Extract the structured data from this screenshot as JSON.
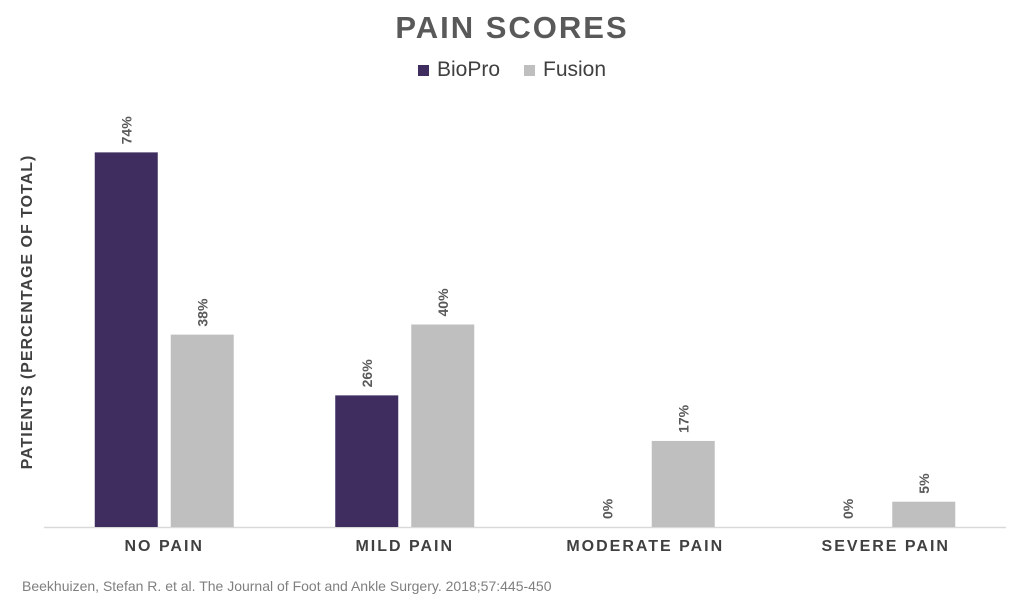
{
  "chart_data": {
    "type": "bar",
    "title": "PAIN SCORES",
    "ylabel": "PATIENTS (PERCENTAGE OF TOTAL)",
    "xlabel": "",
    "categories": [
      "NO PAIN",
      "MILD PAIN",
      "MODERATE PAIN",
      "SEVERE PAIN"
    ],
    "series": [
      {
        "name": "BioPro",
        "color": "#3f2d5f",
        "values": [
          74,
          26,
          0,
          0
        ],
        "labels": [
          "74%",
          "26%",
          "0%",
          "0%"
        ]
      },
      {
        "name": "Fusion",
        "color": "#bfbfbf",
        "values": [
          38,
          40,
          17,
          5
        ],
        "labels": [
          "38%",
          "40%",
          "17%",
          "5%"
        ]
      }
    ],
    "ylim": [
      0,
      80
    ],
    "grid": false,
    "legend_position": "top-center"
  },
  "footnote": "Beekhuizen, Stefan R. et al. The Journal of Foot and Ankle Surgery. 2018;57:445-450"
}
